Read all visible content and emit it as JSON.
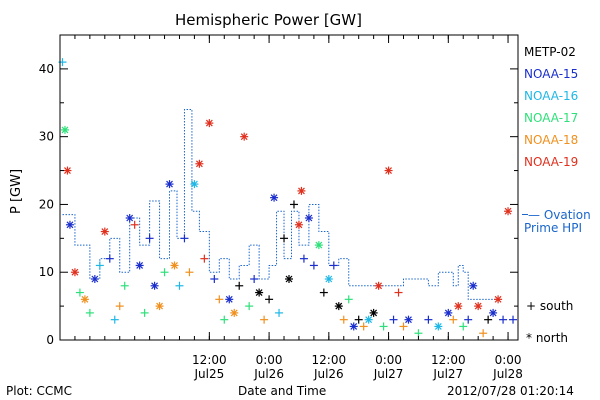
{
  "chart_data": {
    "type": "scatter",
    "title": "Hemispheric Power [GW]",
    "ylabel": "P [GW]",
    "xlabel": "Date and Time",
    "ylim": [
      0,
      45
    ],
    "yticks": [
      0,
      10,
      20,
      30,
      40
    ],
    "xlim": [
      "2012-07-24 06:00",
      "2012-07-28 02:00"
    ],
    "xticks": [
      {
        "time": "2012-07-25 12:00",
        "label1": "12:00",
        "label2": "Jul25"
      },
      {
        "time": "2012-07-26 00:00",
        "label1": "0:00",
        "label2": "Jul26"
      },
      {
        "time": "2012-07-26 12:00",
        "label1": "12:00",
        "label2": "Jul26"
      },
      {
        "time": "2012-07-27 00:00",
        "label1": "0:00",
        "label2": "Jul27"
      },
      {
        "time": "2012-07-27 12:00",
        "label1": "12:00",
        "label2": "Jul27"
      },
      {
        "time": "2012-07-28 00:00",
        "label1": "0:00",
        "label2": "Jul28"
      }
    ],
    "legend": {
      "placement": "right",
      "satellites": [
        {
          "name": "METP-02",
          "color": "#000000"
        },
        {
          "name": "NOAA-15",
          "color": "#1a2ecc"
        },
        {
          "name": "NOAA-16",
          "color": "#1fb8e6"
        },
        {
          "name": "NOAA-17",
          "color": "#2ee07a"
        },
        {
          "name": "NOAA-18",
          "color": "#f0901e"
        },
        {
          "name": "NOAA-19",
          "color": "#e0301e"
        }
      ],
      "ovation_label_1": "— Ovation",
      "ovation_label_2": "Prime HPI",
      "ovation_color": "#1a66cc",
      "south_label": "+ south",
      "north_label": "* north"
    },
    "ovation": [
      [
        "2012-07-24 06:30",
        18.5
      ],
      [
        "2012-07-24 09:00",
        14
      ],
      [
        "2012-07-24 12:00",
        9
      ],
      [
        "2012-07-24 14:00",
        12
      ],
      [
        "2012-07-24 16:00",
        15
      ],
      [
        "2012-07-24 18:00",
        10
      ],
      [
        "2012-07-24 20:00",
        18
      ],
      [
        "2012-07-24 22:00",
        14
      ],
      [
        "2012-07-25 00:00",
        20.5
      ],
      [
        "2012-07-25 02:00",
        12
      ],
      [
        "2012-07-25 04:00",
        22
      ],
      [
        "2012-07-25 05:30",
        15
      ],
      [
        "2012-07-25 07:00",
        34
      ],
      [
        "2012-07-25 08:30",
        19
      ],
      [
        "2012-07-25 10:00",
        16
      ],
      [
        "2012-07-25 12:00",
        10
      ],
      [
        "2012-07-25 14:00",
        12
      ],
      [
        "2012-07-25 16:00",
        9
      ],
      [
        "2012-07-25 18:00",
        11
      ],
      [
        "2012-07-25 20:00",
        14
      ],
      [
        "2012-07-25 22:00",
        9
      ],
      [
        "2012-07-26 00:00",
        11
      ],
      [
        "2012-07-26 01:30",
        19
      ],
      [
        "2012-07-26 03:00",
        12
      ],
      [
        "2012-07-26 04:30",
        19
      ],
      [
        "2012-07-26 06:00",
        14
      ],
      [
        "2012-07-26 08:00",
        20
      ],
      [
        "2012-07-26 10:00",
        16
      ],
      [
        "2012-07-26 12:00",
        11
      ],
      [
        "2012-07-26 14:00",
        12
      ],
      [
        "2012-07-26 16:00",
        8
      ],
      [
        "2012-07-27 00:00",
        8
      ],
      [
        "2012-07-27 03:00",
        9
      ],
      [
        "2012-07-27 06:00",
        9
      ],
      [
        "2012-07-27 08:00",
        8
      ],
      [
        "2012-07-27 10:00",
        10
      ],
      [
        "2012-07-27 12:00",
        10
      ],
      [
        "2012-07-27 13:00",
        8
      ],
      [
        "2012-07-27 14:00",
        11
      ],
      [
        "2012-07-27 15:00",
        10
      ],
      [
        "2012-07-27 16:00",
        6
      ],
      [
        "2012-07-27 22:00",
        6
      ]
    ],
    "points": [
      [
        "2012-07-24 06:30",
        41,
        "NOAA-16",
        "south"
      ],
      [
        "2012-07-24 07:00",
        31,
        "NOAA-17",
        "north"
      ],
      [
        "2012-07-24 07:30",
        25,
        "NOAA-19",
        "north"
      ],
      [
        "2012-07-24 08:00",
        17,
        "NOAA-15",
        "north"
      ],
      [
        "2012-07-24 09:00",
        10,
        "NOAA-19",
        "north"
      ],
      [
        "2012-07-24 10:00",
        7,
        "NOAA-17",
        "south"
      ],
      [
        "2012-07-24 11:00",
        6,
        "NOAA-18",
        "north"
      ],
      [
        "2012-07-24 12:00",
        4,
        "NOAA-17",
        "south"
      ],
      [
        "2012-07-24 13:00",
        9,
        "NOAA-15",
        "north"
      ],
      [
        "2012-07-24 14:00",
        11,
        "NOAA-16",
        "south"
      ],
      [
        "2012-07-24 15:00",
        16,
        "NOAA-19",
        "north"
      ],
      [
        "2012-07-24 16:00",
        12,
        "NOAA-15",
        "south"
      ],
      [
        "2012-07-24 17:00",
        3,
        "NOAA-16",
        "south"
      ],
      [
        "2012-07-24 18:00",
        5,
        "NOAA-18",
        "south"
      ],
      [
        "2012-07-24 19:00",
        8,
        "NOAA-17",
        "south"
      ],
      [
        "2012-07-24 20:00",
        18,
        "NOAA-15",
        "north"
      ],
      [
        "2012-07-24 21:00",
        17,
        "NOAA-19",
        "south"
      ],
      [
        "2012-07-24 22:00",
        11,
        "NOAA-15",
        "north"
      ],
      [
        "2012-07-24 23:00",
        4,
        "NOAA-17",
        "south"
      ],
      [
        "2012-07-25 00:00",
        15,
        "NOAA-15",
        "south"
      ],
      [
        "2012-07-25 01:00",
        8,
        "NOAA-15",
        "north"
      ],
      [
        "2012-07-25 02:00",
        5,
        "NOAA-18",
        "north"
      ],
      [
        "2012-07-25 03:00",
        10,
        "NOAA-17",
        "south"
      ],
      [
        "2012-07-25 04:00",
        23,
        "NOAA-15",
        "north"
      ],
      [
        "2012-07-25 05:00",
        11,
        "NOAA-18",
        "north"
      ],
      [
        "2012-07-25 06:00",
        8,
        "NOAA-16",
        "south"
      ],
      [
        "2012-07-25 07:00",
        15,
        "NOAA-15",
        "south"
      ],
      [
        "2012-07-25 08:00",
        10,
        "NOAA-18",
        "south"
      ],
      [
        "2012-07-25 09:00",
        23,
        "NOAA-16",
        "north"
      ],
      [
        "2012-07-25 10:00",
        26,
        "NOAA-19",
        "north"
      ],
      [
        "2012-07-25 11:00",
        12,
        "NOAA-19",
        "south"
      ],
      [
        "2012-07-25 12:00",
        32,
        "NOAA-19",
        "north"
      ],
      [
        "2012-07-25 13:00",
        9,
        "NOAA-15",
        "south"
      ],
      [
        "2012-07-25 14:00",
        6,
        "NOAA-18",
        "south"
      ],
      [
        "2012-07-25 15:00",
        3,
        "NOAA-17",
        "south"
      ],
      [
        "2012-07-25 16:00",
        6,
        "NOAA-15",
        "north"
      ],
      [
        "2012-07-25 17:00",
        4,
        "NOAA-18",
        "north"
      ],
      [
        "2012-07-25 18:00",
        8,
        "METP-02",
        "south"
      ],
      [
        "2012-07-25 19:00",
        30,
        "NOAA-19",
        "north"
      ],
      [
        "2012-07-25 20:00",
        5,
        "NOAA-17",
        "south"
      ],
      [
        "2012-07-25 21:00",
        9,
        "NOAA-15",
        "south"
      ],
      [
        "2012-07-25 22:00",
        7,
        "METP-02",
        "north"
      ],
      [
        "2012-07-25 23:00",
        3,
        "NOAA-18",
        "south"
      ],
      [
        "2012-07-26 00:00",
        6,
        "METP-02",
        "south"
      ],
      [
        "2012-07-26 01:00",
        21,
        "NOAA-15",
        "north"
      ],
      [
        "2012-07-26 02:00",
        4,
        "NOAA-16",
        "south"
      ],
      [
        "2012-07-26 03:00",
        15,
        "METP-02",
        "south"
      ],
      [
        "2012-07-26 04:00",
        9,
        "METP-02",
        "north"
      ],
      [
        "2012-07-26 05:00",
        20,
        "METP-02",
        "south"
      ],
      [
        "2012-07-26 06:00",
        17,
        "NOAA-19",
        "north"
      ],
      [
        "2012-07-26 06:30",
        22,
        "NOAA-19",
        "north"
      ],
      [
        "2012-07-26 07:00",
        12,
        "NOAA-15",
        "south"
      ],
      [
        "2012-07-26 08:00",
        18,
        "NOAA-15",
        "north"
      ],
      [
        "2012-07-26 09:00",
        11,
        "NOAA-15",
        "south"
      ],
      [
        "2012-07-26 10:00",
        14,
        "NOAA-17",
        "north"
      ],
      [
        "2012-07-26 11:00",
        7,
        "METP-02",
        "south"
      ],
      [
        "2012-07-26 12:00",
        9,
        "NOAA-16",
        "north"
      ],
      [
        "2012-07-26 13:00",
        11,
        "NOAA-15",
        "south"
      ],
      [
        "2012-07-26 14:00",
        5,
        "METP-02",
        "north"
      ],
      [
        "2012-07-26 15:00",
        3,
        "NOAA-18",
        "south"
      ],
      [
        "2012-07-26 16:00",
        6,
        "NOAA-17",
        "south"
      ],
      [
        "2012-07-26 17:00",
        2,
        "NOAA-15",
        "north"
      ],
      [
        "2012-07-26 18:00",
        3,
        "METP-02",
        "south"
      ],
      [
        "2012-07-26 19:00",
        2,
        "NOAA-18",
        "south"
      ],
      [
        "2012-07-26 20:00",
        3,
        "NOAA-16",
        "north"
      ],
      [
        "2012-07-26 21:00",
        4,
        "METP-02",
        "north"
      ],
      [
        "2012-07-26 22:00",
        8,
        "NOAA-19",
        "north"
      ],
      [
        "2012-07-26 23:00",
        2,
        "NOAA-17",
        "south"
      ],
      [
        "2012-07-27 00:00",
        25,
        "NOAA-19",
        "north"
      ],
      [
        "2012-07-27 01:00",
        3,
        "NOAA-15",
        "south"
      ],
      [
        "2012-07-27 02:00",
        7,
        "NOAA-19",
        "south"
      ],
      [
        "2012-07-27 03:00",
        2,
        "NOAA-18",
        "south"
      ],
      [
        "2012-07-27 04:00",
        3,
        "NOAA-15",
        "north"
      ],
      [
        "2012-07-27 06:00",
        1,
        "NOAA-17",
        "south"
      ],
      [
        "2012-07-27 08:00",
        3,
        "NOAA-15",
        "south"
      ],
      [
        "2012-07-27 10:00",
        2,
        "NOAA-16",
        "north"
      ],
      [
        "2012-07-27 12:00",
        4,
        "NOAA-15",
        "north"
      ],
      [
        "2012-07-27 13:00",
        3,
        "NOAA-18",
        "south"
      ],
      [
        "2012-07-27 14:00",
        5,
        "NOAA-19",
        "north"
      ],
      [
        "2012-07-27 15:00",
        2,
        "NOAA-17",
        "south"
      ],
      [
        "2012-07-27 16:00",
        3,
        "NOAA-15",
        "south"
      ],
      [
        "2012-07-27 17:00",
        8,
        "NOAA-15",
        "north"
      ],
      [
        "2012-07-27 18:00",
        5,
        "NOAA-19",
        "north"
      ],
      [
        "2012-07-27 19:00",
        1,
        "NOAA-18",
        "south"
      ],
      [
        "2012-07-27 20:00",
        3,
        "METP-02",
        "south"
      ],
      [
        "2012-07-27 21:00",
        4,
        "NOAA-15",
        "north"
      ],
      [
        "2012-07-27 22:00",
        6,
        "NOAA-19",
        "north"
      ],
      [
        "2012-07-27 23:00",
        3,
        "NOAA-15",
        "south"
      ],
      [
        "2012-07-28 00:00",
        19,
        "NOAA-19",
        "north"
      ],
      [
        "2012-07-28 01:00",
        3,
        "NOAA-15",
        "south"
      ]
    ]
  },
  "footer": {
    "plot_credit": "Plot: CCMC",
    "axis_caption": "Date and Time",
    "timestamp": "2012/07/28 01:20:14"
  }
}
